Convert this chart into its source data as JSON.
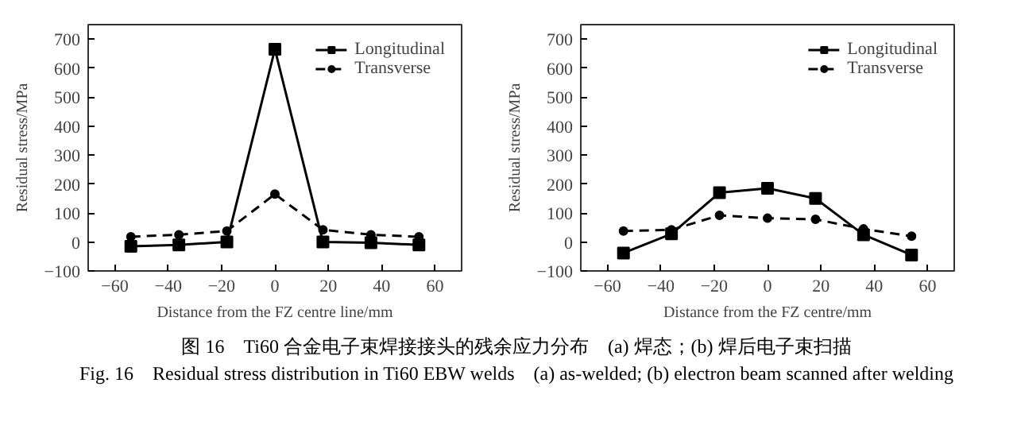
{
  "chart_data": [
    {
      "type": "line",
      "xlabel": "Distance from the FZ centre line/mm",
      "ylabel": "Residual stress/MPa",
      "x": [
        -54,
        -36,
        -18,
        0,
        18,
        36,
        54
      ],
      "xlim": [
        -70,
        70
      ],
      "xticks": [
        -60,
        -40,
        -20,
        0,
        20,
        40,
        60
      ],
      "ylim": [
        -100,
        750
      ],
      "yticks": [
        -100,
        0,
        100,
        200,
        300,
        400,
        500,
        600,
        700
      ],
      "grid": false,
      "legend": "top right",
      "series": [
        {
          "name": "Longitudinal",
          "color": "#000000",
          "marker": "square",
          "line_style": "solid",
          "values": [
            -15,
            -10,
            0,
            665,
            0,
            -3,
            -10
          ]
        },
        {
          "name": "Transverse",
          "color": "#000000",
          "marker": "circle",
          "line_style": "dashed",
          "values": [
            18,
            25,
            38,
            165,
            42,
            25,
            18
          ]
        }
      ],
      "annotations": [
        "图 16　Ti60 合金电子束焊接接头的残余应力分布　(a) 焊态；(b) 焊后电子束扫描",
        "Fig. 16　Residual stress distribution in Ti60 EBW welds　(a) as-welded; (b) electron beam scanned after welding"
      ]
    },
    {
      "type": "line",
      "xlabel": "Distance from the FZ centre/mm",
      "ylabel": "Residual stress/MPa",
      "x": [
        -54,
        -36,
        -18,
        0,
        18,
        36,
        54
      ],
      "xlim": [
        -70,
        70
      ],
      "xticks": [
        -60,
        -40,
        -20,
        0,
        20,
        40,
        60
      ],
      "ylim": [
        -100,
        750
      ],
      "yticks": [
        -100,
        0,
        100,
        200,
        300,
        400,
        500,
        600,
        700
      ],
      "grid": false,
      "legend": "top right",
      "series": [
        {
          "name": "Longitudinal",
          "color": "#000000",
          "marker": "square",
          "line_style": "solid",
          "values": [
            -38,
            28,
            170,
            185,
            150,
            25,
            -45
          ]
        },
        {
          "name": "Transverse",
          "color": "#000000",
          "marker": "circle",
          "line_style": "dashed",
          "values": [
            38,
            42,
            92,
            82,
            78,
            45,
            20
          ]
        }
      ]
    }
  ]
}
